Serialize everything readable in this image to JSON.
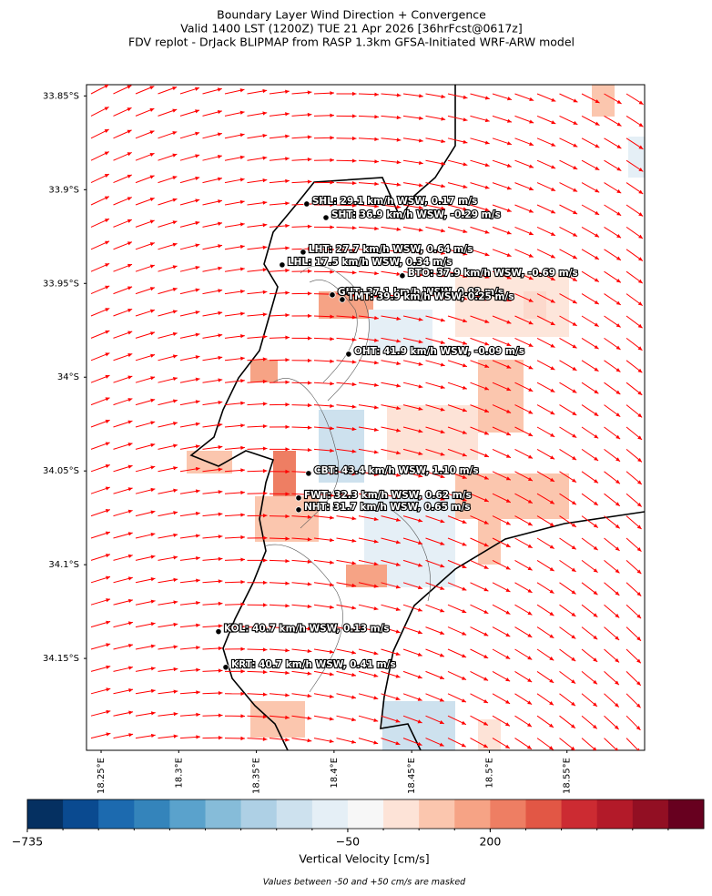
{
  "chart_data": {
    "type": "map",
    "title": [
      "Boundary Layer Wind Direction + Convergence",
      "Valid 1400 LST (1200Z) TUE 21 Apr 2026 [36hrFcst@0617z]",
      "FDV replot - DrJack BLIPMAP from RASP 1.3km GFSA-Initiated WRF-ARW model"
    ],
    "xlim": [
      18.2406,
      18.6
    ],
    "ylim": [
      -34.199,
      -33.844
    ],
    "xticks": [
      {
        "value": 18.25,
        "label": "18.25°E"
      },
      {
        "value": 18.3,
        "label": "18.3°E"
      },
      {
        "value": 18.35,
        "label": "18.35°E"
      },
      {
        "value": 18.4,
        "label": "18.4°E"
      },
      {
        "value": 18.45,
        "label": "18.45°E"
      },
      {
        "value": 18.5,
        "label": "18.5°E"
      },
      {
        "value": 18.55,
        "label": "18.55°E"
      }
    ],
    "yticks": [
      {
        "value": -33.85,
        "label": "33.85°S"
      },
      {
        "value": -33.9,
        "label": "33.9°S"
      },
      {
        "value": -33.95,
        "label": "33.95°S"
      },
      {
        "value": -34.0,
        "label": "34°S"
      },
      {
        "value": -34.05,
        "label": "34.05°S"
      },
      {
        "value": -34.1,
        "label": "34.1°S"
      },
      {
        "value": -34.15,
        "label": "34.15°S"
      }
    ],
    "arrow_color": "#ff0000",
    "stations": [
      {
        "label": "SHL: 29.1 km/h WSW, 0.17 m/s",
        "lon": 18.3824,
        "lat": -33.9076
      },
      {
        "label": "SHT: 36.9 km/h WSW, -0.29 m/s",
        "lon": 18.3948,
        "lat": -33.9149
      },
      {
        "label": "LHT: 27.7 km/h WSW, 0.64 m/s",
        "lon": 18.3801,
        "lat": -33.9333
      },
      {
        "label": "LHL: 17.5 km/h WSW, 0.34 m/s",
        "lon": 18.3666,
        "lat": -33.9401
      },
      {
        "label": "BTO: 37.9 km/h WSW, -0.69 m/s",
        "lon": 18.444,
        "lat": -33.9459
      },
      {
        "label": "GUT: 37.1 km/h WSW, 0.92 m/s",
        "lon": 18.3989,
        "lat": -33.9561
      },
      {
        "label": "TMT: 39.9 km/h WSW, 0.25 m/s",
        "lon": 18.4053,
        "lat": -33.9586
      },
      {
        "label": "OHT: 41.9 km/h WSW, -0.09 m/s",
        "lon": 18.4094,
        "lat": -33.9877
      },
      {
        "label": "CBT: 43.4 km/h WSW, 1.10 m/s",
        "lon": 18.3836,
        "lat": -34.0513
      },
      {
        "label": "FWT: 32.3 km/h WSW, 0.62 m/s",
        "lon": 18.3772,
        "lat": -34.0644
      },
      {
        "label": "NHT: 31.7 km/h WSW, 0.65 m/s",
        "lon": 18.3772,
        "lat": -34.0707
      },
      {
        "label": "KOL: 40.7 km/h WSW, 0.13 m/s",
        "lon": 18.3256,
        "lat": -34.1357
      },
      {
        "label": "KRT: 40.7 km/h WSW, 0.41 m/s",
        "lon": 18.3303,
        "lat": -34.1547
      }
    ],
    "colorbar": {
      "label": "Vertical Velocity [cm/s]",
      "colors": [
        "#053061",
        "#0a4a90",
        "#1c6aaf",
        "#3484bb",
        "#5aa2cc",
        "#86bcd9",
        "#aed0e5",
        "#cde1ee",
        "#e5eff6",
        "#f7f7f7",
        "#fde3d7",
        "#fbc6ae",
        "#f6a385",
        "#ee7e63",
        "#e25745",
        "#cc2b32",
        "#b31a29",
        "#920f23",
        "#67001f"
      ],
      "ticks": [
        {
          "value": -735,
          "label": "−735"
        },
        {
          "value": -50,
          "label": "−50"
        },
        {
          "value": 200,
          "label": "200"
        }
      ]
    },
    "note": "Values between -50 and +50 cm/s are masked"
  }
}
